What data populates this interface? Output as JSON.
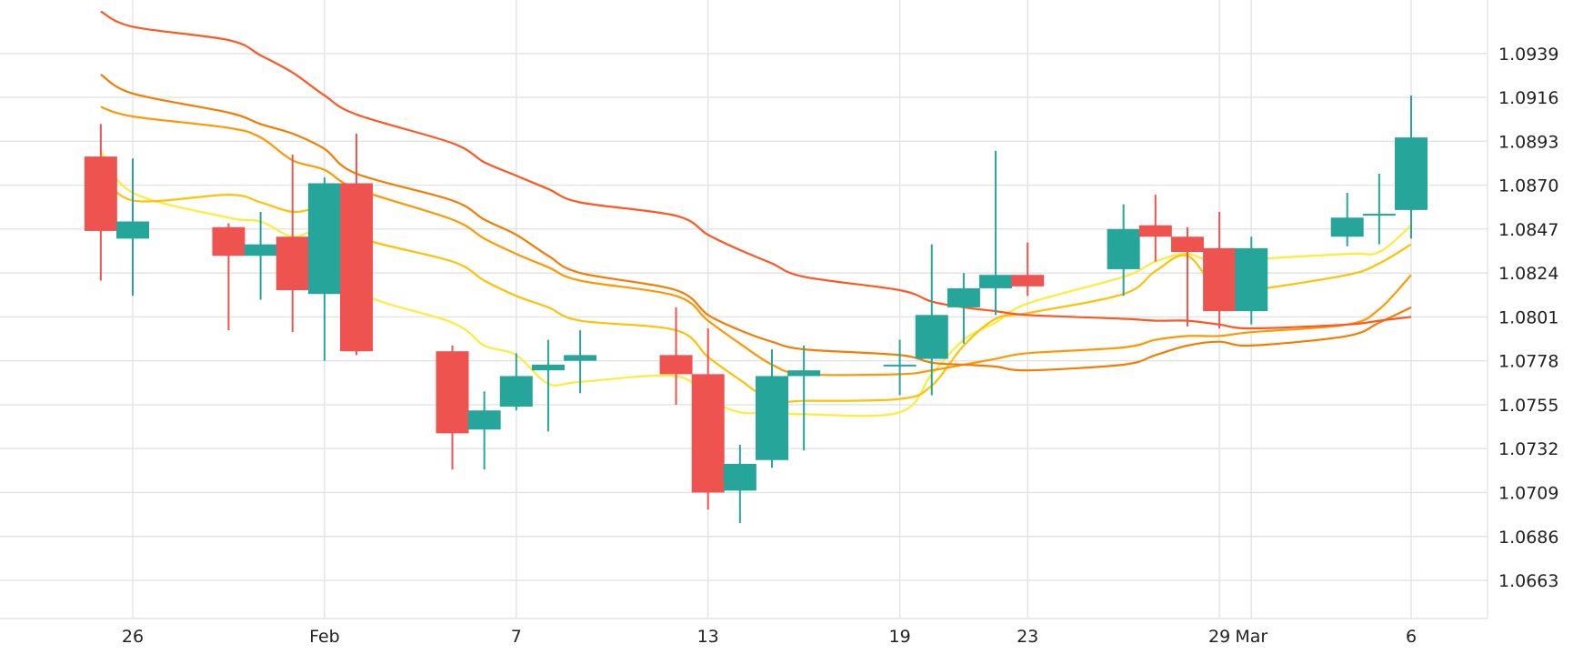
{
  "chart_data": {
    "type": "candlestick",
    "title": "",
    "xlabel": "",
    "ylabel": "",
    "ylim": [
      1.0643,
      1.0967
    ],
    "grid": true,
    "y_axis_position": "right",
    "y_ticks": [
      "1.0663",
      "1.0686",
      "1.0709",
      "1.0732",
      "1.0755",
      "1.0778",
      "1.0801",
      "1.0824",
      "1.0847",
      "1.0870",
      "1.0893",
      "1.0916",
      "1.0939"
    ],
    "x_ticks": [
      {
        "label": "26",
        "date": "2024-01-26"
      },
      {
        "label": "Feb",
        "date": "2024-02-01"
      },
      {
        "label": "7",
        "date": "2024-02-07"
      },
      {
        "label": "13",
        "date": "2024-02-13"
      },
      {
        "label": "19",
        "date": "2024-02-19"
      },
      {
        "label": "23",
        "date": "2024-02-23"
      },
      {
        "label": "29",
        "date": "2024-02-29"
      },
      {
        "label": "Mar",
        "date": "2024-03-01"
      },
      {
        "label": "6",
        "date": "2024-03-06"
      }
    ],
    "colors": {
      "up": "#26a69a",
      "down": "#ef5350",
      "ma": [
        "#ffeb3b",
        "#ffc107",
        "#ff9800",
        "#f57c00",
        "#ff5722",
        "#f4511e"
      ]
    },
    "candles": [
      {
        "date": "2024-01-25",
        "open": 1.0885,
        "high": 1.0902,
        "low": 1.082,
        "close": 1.0846
      },
      {
        "date": "2024-01-26",
        "open": 1.0842,
        "high": 1.0884,
        "low": 1.0812,
        "close": 1.0851
      },
      {
        "date": "2024-01-29",
        "open": 1.0848,
        "high": 1.085,
        "low": 1.0794,
        "close": 1.0833
      },
      {
        "date": "2024-01-30",
        "open": 1.0833,
        "high": 1.0856,
        "low": 1.081,
        "close": 1.0839
      },
      {
        "date": "2024-01-31",
        "open": 1.0843,
        "high": 1.0886,
        "low": 1.0793,
        "close": 1.0815
      },
      {
        "date": "2024-02-01",
        "open": 1.0813,
        "high": 1.0874,
        "low": 1.0778,
        "close": 1.0871
      },
      {
        "date": "2024-02-02",
        "open": 1.0871,
        "high": 1.0897,
        "low": 1.0781,
        "close": 1.0783
      },
      {
        "date": "2024-02-05",
        "open": 1.0783,
        "high": 1.0786,
        "low": 1.0721,
        "close": 1.074
      },
      {
        "date": "2024-02-06",
        "open": 1.0742,
        "high": 1.0762,
        "low": 1.0721,
        "close": 1.0752
      },
      {
        "date": "2024-02-07",
        "open": 1.0754,
        "high": 1.0782,
        "low": 1.0752,
        "close": 1.077
      },
      {
        "date": "2024-02-08",
        "open": 1.0773,
        "high": 1.0789,
        "low": 1.0741,
        "close": 1.0776
      },
      {
        "date": "2024-02-09",
        "open": 1.0778,
        "high": 1.0794,
        "low": 1.0761,
        "close": 1.0781
      },
      {
        "date": "2024-02-12",
        "open": 1.0781,
        "high": 1.0806,
        "low": 1.0755,
        "close": 1.0771
      },
      {
        "date": "2024-02-13",
        "open": 1.0771,
        "high": 1.0795,
        "low": 1.07,
        "close": 1.0709
      },
      {
        "date": "2024-02-14",
        "open": 1.071,
        "high": 1.0734,
        "low": 1.0693,
        "close": 1.0724
      },
      {
        "date": "2024-02-15",
        "open": 1.0726,
        "high": 1.0784,
        "low": 1.0722,
        "close": 1.077
      },
      {
        "date": "2024-02-16",
        "open": 1.077,
        "high": 1.0786,
        "low": 1.0731,
        "close": 1.0773
      },
      {
        "date": "2024-02-19",
        "open": 1.0776,
        "high": 1.0789,
        "low": 1.076,
        "close": 1.0776
      },
      {
        "date": "2024-02-20",
        "open": 1.0779,
        "high": 1.0839,
        "low": 1.076,
        "close": 1.0802
      },
      {
        "date": "2024-02-21",
        "open": 1.0806,
        "high": 1.0824,
        "low": 1.0787,
        "close": 1.0816
      },
      {
        "date": "2024-02-22",
        "open": 1.0816,
        "high": 1.0888,
        "low": 1.0802,
        "close": 1.0823
      },
      {
        "date": "2024-02-23",
        "open": 1.0823,
        "high": 1.084,
        "low": 1.0812,
        "close": 1.0817
      },
      {
        "date": "2024-02-26",
        "open": 1.0826,
        "high": 1.086,
        "low": 1.0812,
        "close": 1.0847
      },
      {
        "date": "2024-02-27",
        "open": 1.0849,
        "high": 1.0865,
        "low": 1.083,
        "close": 1.0843
      },
      {
        "date": "2024-02-28",
        "open": 1.0843,
        "high": 1.0848,
        "low": 1.0796,
        "close": 1.0835
      },
      {
        "date": "2024-02-29",
        "open": 1.0837,
        "high": 1.0856,
        "low": 1.0795,
        "close": 1.0804
      },
      {
        "date": "2024-03-01",
        "open": 1.0804,
        "high": 1.0843,
        "low": 1.0797,
        "close": 1.0837
      },
      {
        "date": "2024-03-04",
        "open": 1.0843,
        "high": 1.0866,
        "low": 1.0838,
        "close": 1.0853
      },
      {
        "date": "2024-03-05",
        "open": 1.0855,
        "high": 1.0876,
        "low": 1.0839,
        "close": 1.0855
      },
      {
        "date": "2024-03-06",
        "open": 1.0857,
        "high": 1.0917,
        "low": 1.0842,
        "close": 1.0895
      }
    ],
    "series": [
      {
        "values": [
          1.0888,
          1.0866,
          1.0853,
          1.0851,
          1.0843,
          1.0845,
          1.0815,
          1.0798,
          1.0786,
          1.0781,
          1.0766,
          1.0767,
          1.077,
          1.0758,
          1.0751,
          1.0751,
          1.075,
          1.0751,
          1.0771,
          1.0789,
          1.0798,
          1.0808,
          1.0822,
          1.083,
          1.0834,
          1.0828,
          1.0831,
          1.0834,
          1.0835,
          1.0849
        ]
      },
      {
        "values": [
          1.0878,
          1.0862,
          1.0865,
          1.0861,
          1.0856,
          1.0857,
          1.0843,
          1.083,
          1.082,
          1.0812,
          1.0806,
          1.0799,
          1.0794,
          1.078,
          1.0768,
          1.0757,
          1.0757,
          1.0758,
          1.0765,
          1.0786,
          1.08,
          1.0803,
          1.0813,
          1.0825,
          1.0833,
          1.0814,
          1.0815,
          1.0823,
          1.0829,
          1.0839
        ]
      },
      {
        "values": [
          1.0911,
          1.0906,
          1.09,
          1.0895,
          1.0883,
          1.0878,
          1.0868,
          1.0852,
          1.0842,
          1.0834,
          1.0827,
          1.082,
          1.0812,
          1.0799,
          1.0787,
          1.0776,
          1.0771,
          1.0771,
          1.0773,
          1.0776,
          1.0779,
          1.0782,
          1.0785,
          1.0789,
          1.0791,
          1.0791,
          1.0793,
          1.0797,
          1.0805,
          1.0823
        ]
      },
      {
        "values": [
          1.0928,
          1.0918,
          1.0908,
          1.0902,
          1.0897,
          1.0889,
          1.0876,
          1.0862,
          1.0852,
          1.0844,
          1.0833,
          1.0824,
          1.0815,
          1.0802,
          1.0794,
          1.0788,
          1.0784,
          1.0781,
          1.0777,
          1.0776,
          1.0775,
          1.0773,
          1.0776,
          1.0781,
          1.0786,
          1.0788,
          1.0786,
          1.0791,
          1.0798,
          1.0806
        ]
      },
      {
        "values": [
          1.0961,
          1.0953,
          1.0946,
          1.0938,
          1.0929,
          1.0917,
          1.0907,
          1.0892,
          1.0882,
          1.0875,
          1.0868,
          1.0861,
          1.0854,
          1.0844,
          1.0836,
          1.0829,
          1.0822,
          1.0815,
          1.0809,
          1.0806,
          1.0804,
          1.0802,
          1.08,
          1.0799,
          1.0799,
          1.0797,
          1.0795,
          1.0797,
          1.0799,
          1.0801
        ]
      }
    ]
  }
}
